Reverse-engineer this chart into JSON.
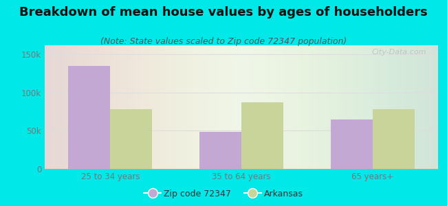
{
  "title": "Breakdown of mean house values by ages of householders",
  "subtitle": "(Note: State values scaled to Zip code 72347 population)",
  "categories": [
    "25 to 34 years",
    "35 to 64 years",
    "65 years+"
  ],
  "zip_values": [
    135000,
    49000,
    65000
  ],
  "state_values": [
    78000,
    87000,
    78000
  ],
  "zip_color": "#c4a8d4",
  "state_color": "#c8d49a",
  "background_color": "#00e8e8",
  "yticks": [
    0,
    50000,
    100000,
    150000
  ],
  "ylabels": [
    "0",
    "50k",
    "100k",
    "150k"
  ],
  "ylim": [
    0,
    162000
  ],
  "legend_zip_label": "Zip code 72347",
  "legend_state_label": "Arkansas",
  "bar_width": 0.32,
  "title_fontsize": 13,
  "subtitle_fontsize": 9,
  "watermark_text": "City-Data.com",
  "tick_color": "#777777",
  "grid_color": "#dddddd"
}
